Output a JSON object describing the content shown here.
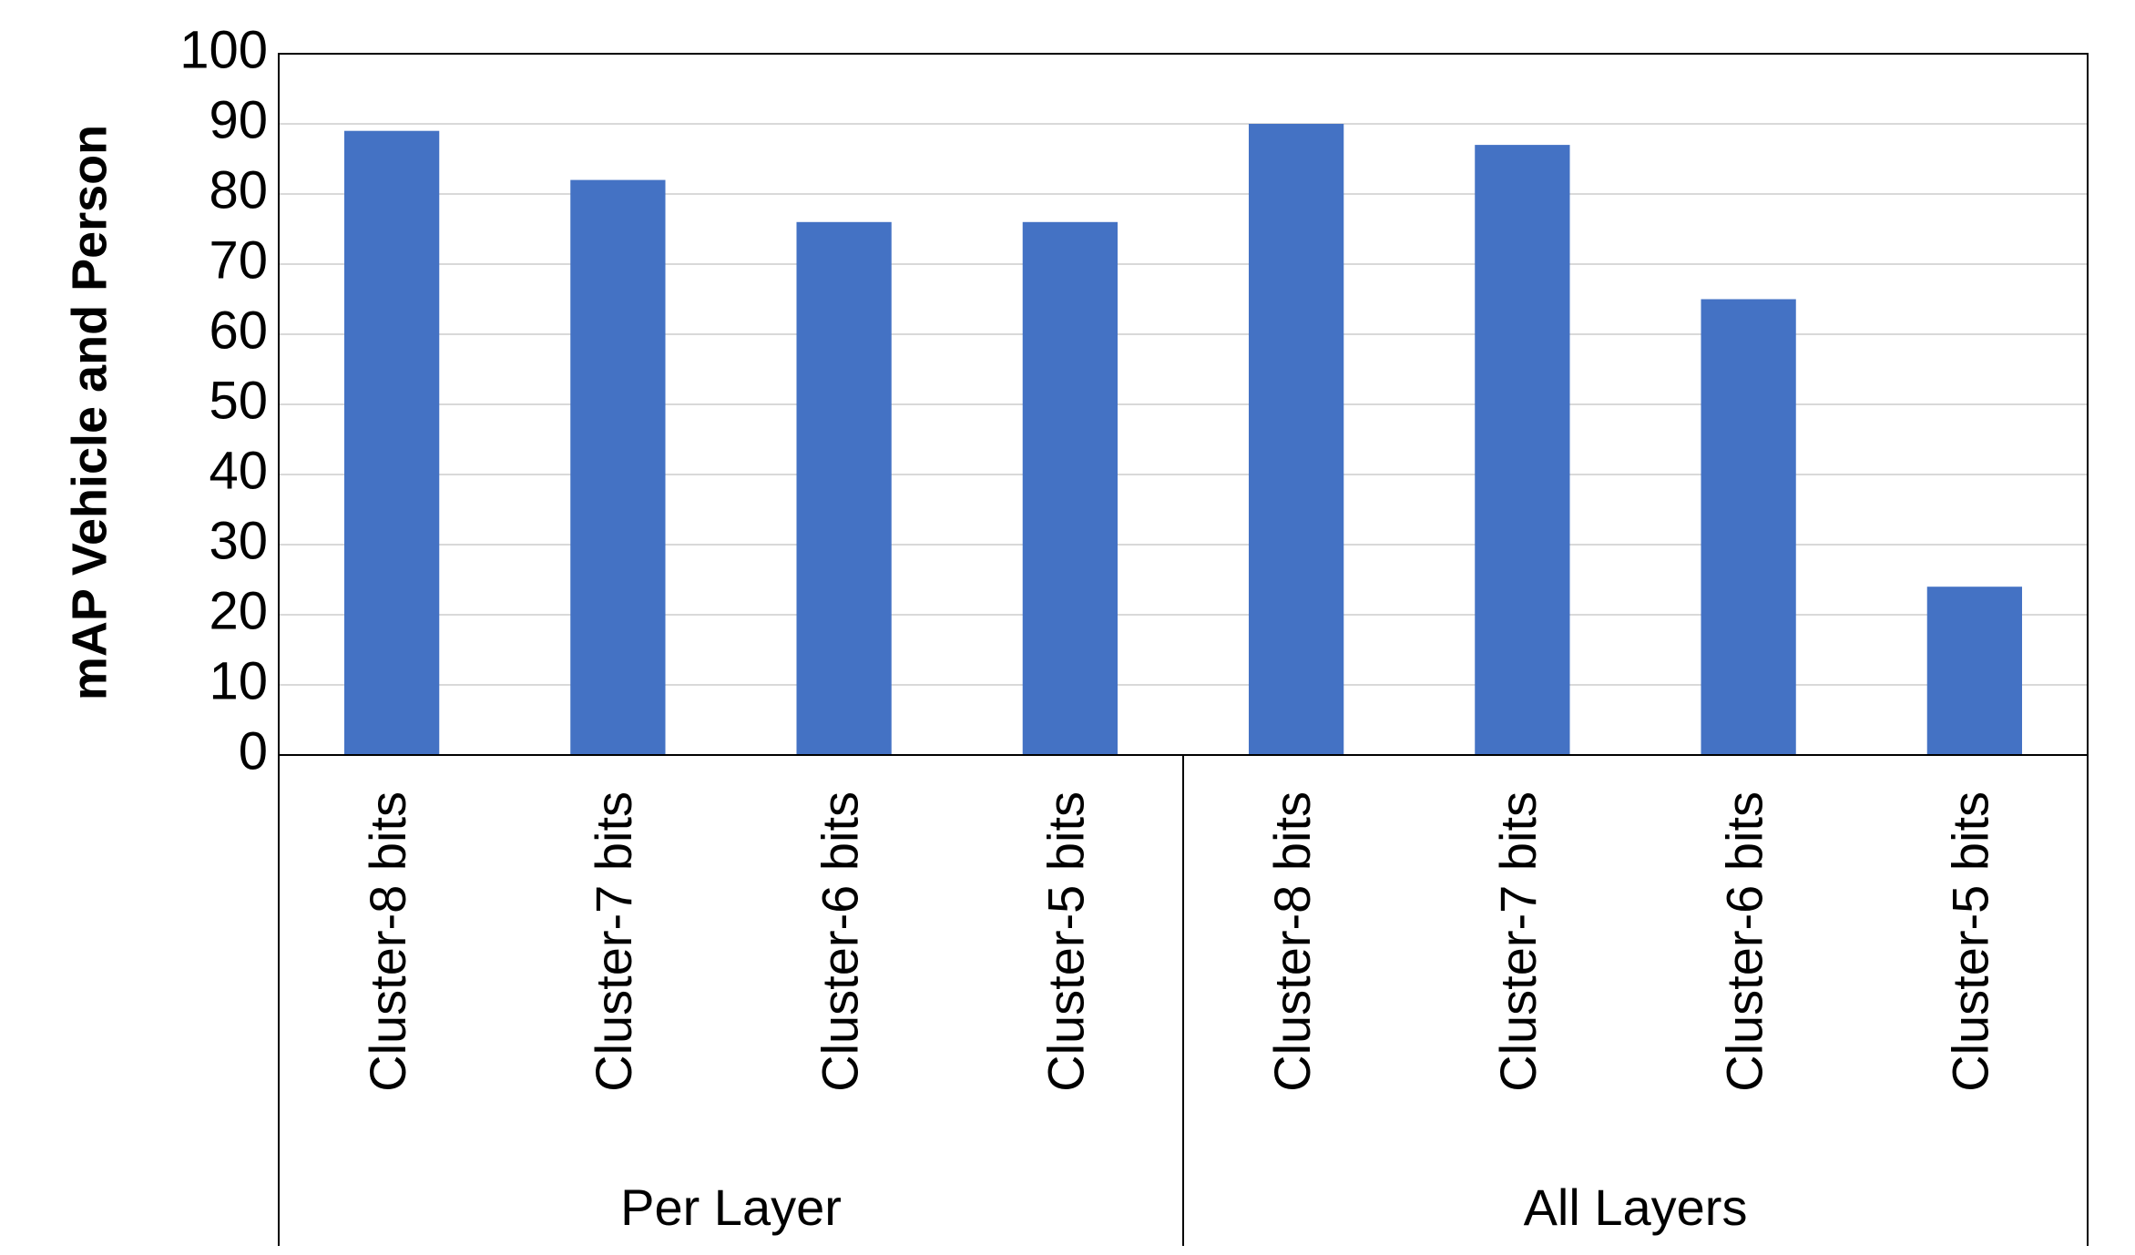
{
  "chart_data": {
    "type": "bar",
    "ylabel": "mAP Vehicle and Person",
    "groups": [
      {
        "name": "Per Layer",
        "categories": [
          "Cluster-8 bits",
          "Cluster-7 bits",
          "Cluster-6 bits",
          "Cluster-5 bits"
        ],
        "values": [
          89,
          82,
          76,
          76
        ]
      },
      {
        "name": "All Layers",
        "categories": [
          "Cluster-8 bits",
          "Cluster-7 bits",
          "Cluster-6 bits",
          "Cluster-5 bits"
        ],
        "values": [
          90,
          87,
          65,
          24
        ]
      }
    ],
    "color": "#4472c4",
    "ylim": [
      0,
      100
    ],
    "yticks": [
      0,
      10,
      20,
      30,
      40,
      50,
      60,
      70,
      80,
      90,
      100
    ],
    "grid": true
  }
}
